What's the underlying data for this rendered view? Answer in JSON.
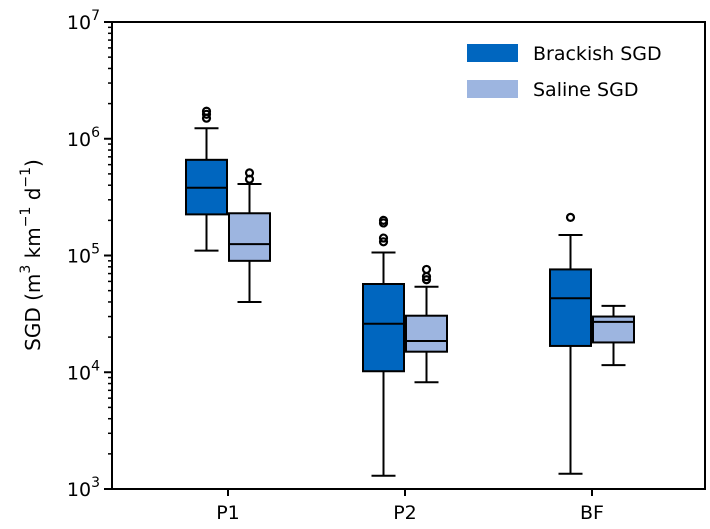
{
  "chart_data": {
    "type": "box",
    "title": "",
    "xlabel": "",
    "ylabel_main": "SGD (m",
    "ylabel_sup1": "3",
    "ylabel_mid": " km",
    "ylabel_sup2": "−1",
    "ylabel_mid2": " d",
    "ylabel_sup3": "−1",
    "ylabel_end": ")",
    "yscale": "log",
    "ylim": [
      1000,
      10000000
    ],
    "yticks": [
      {
        "value": 1000,
        "base": "10",
        "exp": "3"
      },
      {
        "value": 10000,
        "base": "10",
        "exp": "4"
      },
      {
        "value": 100000,
        "base": "10",
        "exp": "5"
      },
      {
        "value": 1000000,
        "base": "10",
        "exp": "6"
      },
      {
        "value": 10000000,
        "base": "10",
        "exp": "7"
      }
    ],
    "categories": [
      "P1",
      "P2",
      "BF"
    ],
    "legend_position": "top-right",
    "series": [
      {
        "name": "Brackish SGD",
        "color": "#0066bf",
        "boxes": [
          {
            "whisker_low": 110000,
            "q1": 225000,
            "median": 380000,
            "q3": 660000,
            "whisker_high": 1230000,
            "outliers": [
              1500000,
              1620000,
              1720000
            ]
          },
          {
            "whisker_low": 1300,
            "q1": 10200,
            "median": 26000,
            "q3": 57000,
            "whisker_high": 106000,
            "outliers": [
              131000,
              141000,
              190000,
              200000
            ]
          },
          {
            "whisker_low": 1350,
            "q1": 16800,
            "median": 43000,
            "q3": 76000,
            "whisker_high": 150000,
            "outliers": [
              212000
            ]
          }
        ]
      },
      {
        "name": "Saline SGD",
        "color": "#9db5e0",
        "boxes": [
          {
            "whisker_low": 40000,
            "q1": 90000,
            "median": 125000,
            "q3": 230000,
            "whisker_high": 410000,
            "outliers": [
              450000,
              510000
            ]
          },
          {
            "whisker_low": 8200,
            "q1": 15000,
            "median": 18500,
            "q3": 30500,
            "whisker_high": 54000,
            "outliers": [
              62000,
              66000,
              76000
            ]
          },
          {
            "whisker_low": 11500,
            "q1": 18000,
            "median": 27000,
            "q3": 30000,
            "whisker_high": 37000,
            "outliers": []
          }
        ]
      }
    ]
  }
}
